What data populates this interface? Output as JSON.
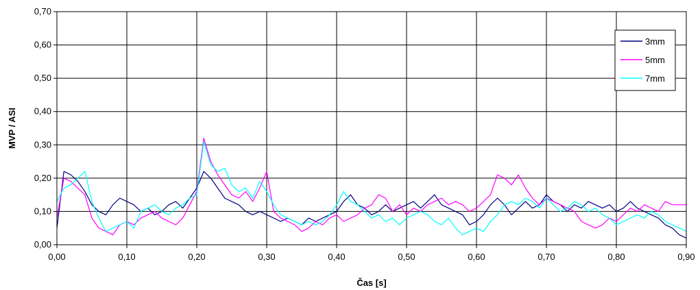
{
  "chart_data": {
    "type": "line",
    "title": "",
    "xlabel": "Čas [s]",
    "ylabel": "MVP / ASI",
    "xlim": [
      0,
      0.9
    ],
    "ylim": [
      0,
      0.7
    ],
    "x_ticks": [
      "0,00",
      "0,10",
      "0,20",
      "0,30",
      "0,40",
      "0,50",
      "0,60",
      "0,70",
      "0,80",
      "0,90"
    ],
    "y_ticks": [
      "0,00",
      "0,10",
      "0,20",
      "0,30",
      "0,40",
      "0,50",
      "0,60",
      "0,70"
    ],
    "grid": true,
    "legend_position": "top-right",
    "series": [
      {
        "name": "3mm",
        "color": "#000080",
        "x": [
          0,
          0.01,
          0.02,
          0.03,
          0.04,
          0.05,
          0.06,
          0.07,
          0.08,
          0.09,
          0.1,
          0.11,
          0.12,
          0.13,
          0.14,
          0.15,
          0.16,
          0.17,
          0.18,
          0.19,
          0.2,
          0.21,
          0.22,
          0.23,
          0.24,
          0.25,
          0.26,
          0.27,
          0.28,
          0.29,
          0.3,
          0.31,
          0.32,
          0.33,
          0.34,
          0.35,
          0.36,
          0.37,
          0.38,
          0.39,
          0.4,
          0.41,
          0.42,
          0.43,
          0.44,
          0.45,
          0.46,
          0.47,
          0.48,
          0.49,
          0.5,
          0.51,
          0.52,
          0.53,
          0.54,
          0.55,
          0.56,
          0.57,
          0.58,
          0.59,
          0.6,
          0.61,
          0.62,
          0.63,
          0.64,
          0.65,
          0.66,
          0.67,
          0.68,
          0.69,
          0.7,
          0.71,
          0.72,
          0.73,
          0.74,
          0.75,
          0.76,
          0.77,
          0.78,
          0.79,
          0.8,
          0.81,
          0.82,
          0.83,
          0.84,
          0.85,
          0.86,
          0.87,
          0.88,
          0.89,
          0.9
        ],
        "y": [
          0.05,
          0.22,
          0.21,
          0.19,
          0.16,
          0.12,
          0.1,
          0.09,
          0.12,
          0.14,
          0.13,
          0.12,
          0.1,
          0.11,
          0.09,
          0.1,
          0.12,
          0.13,
          0.11,
          0.14,
          0.17,
          0.22,
          0.2,
          0.17,
          0.14,
          0.13,
          0.12,
          0.1,
          0.09,
          0.1,
          0.09,
          0.08,
          0.07,
          0.08,
          0.07,
          0.06,
          0.08,
          0.07,
          0.08,
          0.09,
          0.1,
          0.13,
          0.15,
          0.12,
          0.11,
          0.09,
          0.1,
          0.12,
          0.1,
          0.11,
          0.12,
          0.13,
          0.11,
          0.13,
          0.15,
          0.12,
          0.11,
          0.1,
          0.09,
          0.06,
          0.07,
          0.09,
          0.12,
          0.14,
          0.12,
          0.09,
          0.11,
          0.13,
          0.11,
          0.12,
          0.15,
          0.13,
          0.12,
          0.1,
          0.12,
          0.11,
          0.13,
          0.12,
          0.11,
          0.12,
          0.1,
          0.11,
          0.13,
          0.11,
          0.1,
          0.09,
          0.08,
          0.06,
          0.05,
          0.03,
          0.02
        ]
      },
      {
        "name": "5mm",
        "color": "#ff00ff",
        "x": [
          0,
          0.01,
          0.02,
          0.03,
          0.04,
          0.05,
          0.06,
          0.07,
          0.08,
          0.09,
          0.1,
          0.11,
          0.12,
          0.13,
          0.14,
          0.15,
          0.16,
          0.17,
          0.18,
          0.19,
          0.2,
          0.21,
          0.22,
          0.23,
          0.24,
          0.25,
          0.26,
          0.27,
          0.28,
          0.29,
          0.3,
          0.31,
          0.32,
          0.33,
          0.34,
          0.35,
          0.36,
          0.37,
          0.38,
          0.39,
          0.4,
          0.41,
          0.42,
          0.43,
          0.44,
          0.45,
          0.46,
          0.47,
          0.48,
          0.49,
          0.5,
          0.51,
          0.52,
          0.53,
          0.54,
          0.55,
          0.56,
          0.57,
          0.58,
          0.59,
          0.6,
          0.61,
          0.62,
          0.63,
          0.64,
          0.65,
          0.66,
          0.67,
          0.68,
          0.69,
          0.7,
          0.71,
          0.72,
          0.73,
          0.74,
          0.75,
          0.76,
          0.77,
          0.78,
          0.79,
          0.8,
          0.81,
          0.82,
          0.83,
          0.84,
          0.85,
          0.86,
          0.87,
          0.88,
          0.89,
          0.9
        ],
        "y": [
          0.08,
          0.2,
          0.19,
          0.17,
          0.15,
          0.08,
          0.05,
          0.04,
          0.03,
          0.06,
          0.07,
          0.06,
          0.08,
          0.09,
          0.1,
          0.08,
          0.07,
          0.06,
          0.08,
          0.12,
          0.16,
          0.32,
          0.25,
          0.21,
          0.18,
          0.15,
          0.14,
          0.16,
          0.13,
          0.17,
          0.22,
          0.1,
          0.08,
          0.07,
          0.06,
          0.04,
          0.05,
          0.07,
          0.06,
          0.08,
          0.09,
          0.07,
          0.08,
          0.09,
          0.11,
          0.12,
          0.15,
          0.14,
          0.1,
          0.12,
          0.09,
          0.11,
          0.1,
          0.12,
          0.13,
          0.14,
          0.12,
          0.13,
          0.12,
          0.1,
          0.11,
          0.13,
          0.15,
          0.21,
          0.2,
          0.18,
          0.21,
          0.17,
          0.14,
          0.12,
          0.14,
          0.13,
          0.12,
          0.11,
          0.1,
          0.07,
          0.06,
          0.05,
          0.06,
          0.08,
          0.07,
          0.09,
          0.11,
          0.1,
          0.12,
          0.11,
          0.1,
          0.13,
          0.12,
          0.12,
          0.12
        ]
      },
      {
        "name": "7mm",
        "color": "#00ffff",
        "x": [
          0,
          0.01,
          0.02,
          0.03,
          0.04,
          0.05,
          0.06,
          0.07,
          0.08,
          0.09,
          0.1,
          0.11,
          0.12,
          0.13,
          0.14,
          0.15,
          0.16,
          0.17,
          0.18,
          0.19,
          0.2,
          0.21,
          0.22,
          0.23,
          0.24,
          0.25,
          0.26,
          0.27,
          0.28,
          0.29,
          0.3,
          0.31,
          0.32,
          0.33,
          0.34,
          0.35,
          0.36,
          0.37,
          0.38,
          0.39,
          0.4,
          0.41,
          0.42,
          0.43,
          0.44,
          0.45,
          0.46,
          0.47,
          0.48,
          0.49,
          0.5,
          0.51,
          0.52,
          0.53,
          0.54,
          0.55,
          0.56,
          0.57,
          0.58,
          0.59,
          0.6,
          0.61,
          0.62,
          0.63,
          0.64,
          0.65,
          0.66,
          0.67,
          0.68,
          0.69,
          0.7,
          0.71,
          0.72,
          0.73,
          0.74,
          0.75,
          0.76,
          0.77,
          0.78,
          0.79,
          0.8,
          0.81,
          0.82,
          0.83,
          0.84,
          0.85,
          0.86,
          0.87,
          0.88,
          0.89,
          0.9
        ],
        "y": [
          0.13,
          0.17,
          0.18,
          0.2,
          0.22,
          0.13,
          0.08,
          0.04,
          0.05,
          0.06,
          0.07,
          0.05,
          0.1,
          0.11,
          0.12,
          0.1,
          0.09,
          0.11,
          0.12,
          0.14,
          0.15,
          0.31,
          0.24,
          0.22,
          0.23,
          0.18,
          0.16,
          0.17,
          0.14,
          0.19,
          0.16,
          0.12,
          0.09,
          0.08,
          0.07,
          0.06,
          0.07,
          0.06,
          0.07,
          0.09,
          0.12,
          0.16,
          0.13,
          0.12,
          0.1,
          0.08,
          0.09,
          0.07,
          0.08,
          0.06,
          0.08,
          0.09,
          0.1,
          0.09,
          0.07,
          0.06,
          0.08,
          0.05,
          0.03,
          0.04,
          0.05,
          0.04,
          0.07,
          0.09,
          0.12,
          0.13,
          0.12,
          0.14,
          0.13,
          0.11,
          0.14,
          0.12,
          0.1,
          0.11,
          0.13,
          0.12,
          0.1,
          0.11,
          0.09,
          0.08,
          0.06,
          0.07,
          0.08,
          0.09,
          0.08,
          0.1,
          0.09,
          0.07,
          0.06,
          0.05,
          0.04
        ]
      }
    ]
  }
}
